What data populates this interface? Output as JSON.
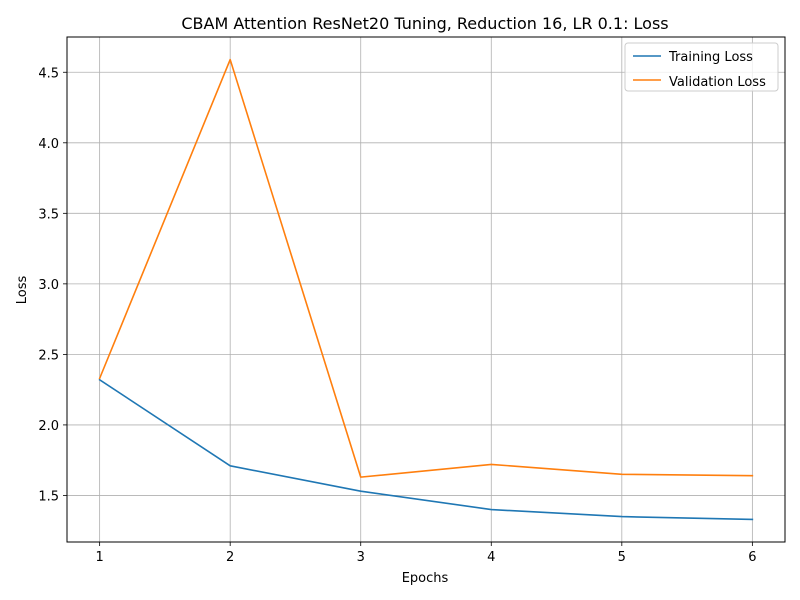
{
  "chart_data": {
    "type": "line",
    "title": "CBAM Attention ResNet20 Tuning, Reduction 16, LR 0.1: Loss",
    "xlabel": "Epochs",
    "ylabel": "Loss",
    "x": [
      1,
      2,
      3,
      4,
      5,
      6
    ],
    "xlim": [
      0.75,
      6.25
    ],
    "ylim": [
      1.17,
      4.75
    ],
    "xticks": [
      1,
      2,
      3,
      4,
      5,
      6
    ],
    "yticks": [
      1.5,
      2.0,
      2.5,
      3.0,
      3.5,
      4.0,
      4.5
    ],
    "ytick_labels": [
      "1.5",
      "2.0",
      "2.5",
      "3.0",
      "3.5",
      "4.0",
      "4.5"
    ],
    "grid": true,
    "legend_position": "top-right",
    "series": [
      {
        "name": "Training Loss",
        "color": "#1f77b4",
        "values": [
          2.32,
          1.71,
          1.53,
          1.4,
          1.35,
          1.33
        ]
      },
      {
        "name": "Validation Loss",
        "color": "#ff7f0e",
        "values": [
          2.33,
          4.59,
          1.63,
          1.72,
          1.65,
          1.64
        ]
      }
    ]
  }
}
